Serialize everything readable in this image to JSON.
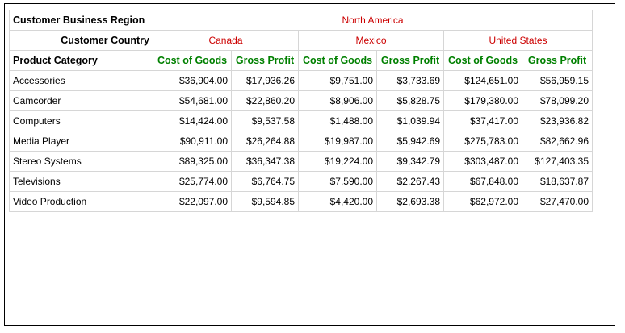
{
  "headers": {
    "region_label": "Customer Business Region",
    "country_label": "Customer Country",
    "category_label": "Product Category",
    "region": "North America",
    "countries": [
      "Canada",
      "Mexico",
      "United States"
    ],
    "measures": [
      "Cost of Goods",
      "Gross Profit",
      "Cost of Goods",
      "Gross Profit",
      "Cost of Goods",
      "Gross Profit"
    ]
  },
  "rows": [
    {
      "category": "Accessories",
      "values": [
        "$36,904.00",
        "$17,936.26",
        "$9,751.00",
        "$3,733.69",
        "$124,651.00",
        "$56,959.15"
      ]
    },
    {
      "category": "Camcorder",
      "values": [
        "$54,681.00",
        "$22,860.20",
        "$8,906.00",
        "$5,828.75",
        "$179,380.00",
        "$78,099.20"
      ]
    },
    {
      "category": "Computers",
      "values": [
        "$14,424.00",
        "$9,537.58",
        "$1,488.00",
        "$1,039.94",
        "$37,417.00",
        "$23,936.82"
      ]
    },
    {
      "category": "Media Player",
      "values": [
        "$90,911.00",
        "$26,264.88",
        "$19,987.00",
        "$5,942.69",
        "$275,783.00",
        "$82,662.96"
      ]
    },
    {
      "category": "Stereo Systems",
      "values": [
        "$89,325.00",
        "$36,347.38",
        "$19,224.00",
        "$9,342.79",
        "$303,487.00",
        "$127,403.35"
      ]
    },
    {
      "category": "Televisions",
      "values": [
        "$25,774.00",
        "$6,764.75",
        "$7,590.00",
        "$2,267.43",
        "$67,848.00",
        "$18,637.87"
      ]
    },
    {
      "category": "Video Production",
      "values": [
        "$22,097.00",
        "$9,594.85",
        "$4,420.00",
        "$2,693.38",
        "$62,972.00",
        "$27,470.00"
      ]
    }
  ]
}
